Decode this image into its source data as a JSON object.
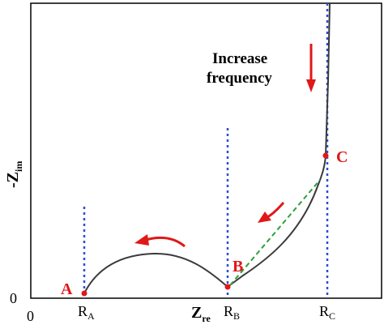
{
  "axes": {
    "x_label": "Z",
    "x_label_sub": "re",
    "y_label": "-Z",
    "y_label_sub": "im",
    "origin_x": "0",
    "origin_y": "0"
  },
  "ticks": [
    {
      "main": "R",
      "sub": "A"
    },
    {
      "main": "R",
      "sub": "B"
    },
    {
      "main": "R",
      "sub": "C"
    }
  ],
  "points": {
    "A": "A",
    "B": "B",
    "C": "C"
  },
  "annotation": {
    "line1": "Increase",
    "line2": "frequency"
  },
  "colors": {
    "curve": "#3a3a3a",
    "guide": "#2a4fd8",
    "warburg_fit": "#2e9e3a",
    "arrow": "#e01818",
    "label": "#e01818",
    "axis": "#000000"
  }
}
